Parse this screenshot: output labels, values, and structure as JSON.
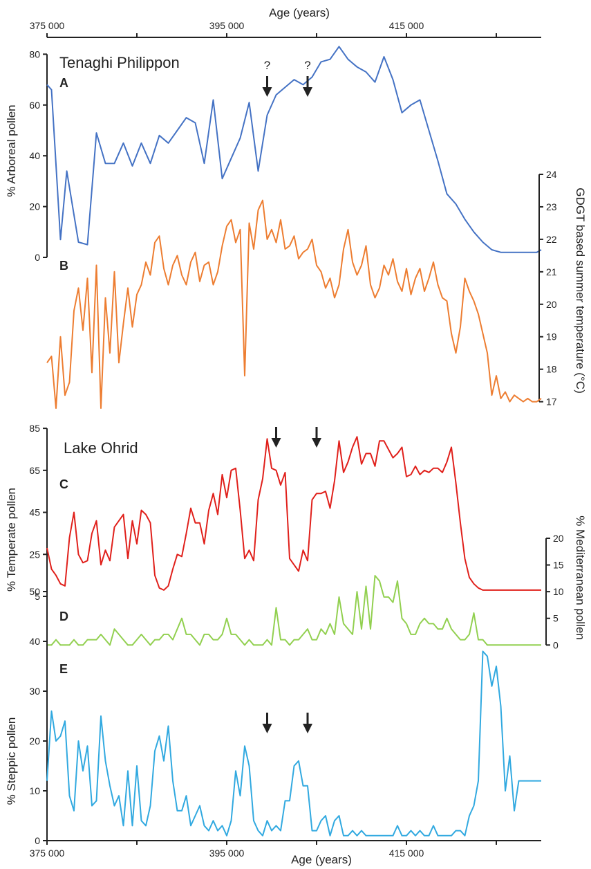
{
  "chart_data": [
    {
      "type": "line",
      "panel": "A",
      "site_title": "Tenaghi Philippon",
      "ylabel": "% Arboreal pollen",
      "ylim": [
        0,
        85
      ],
      "yticks": [
        0,
        20,
        40,
        60,
        80
      ],
      "color": "#4472c4",
      "xlabel_top": "Age (years)",
      "xlim": [
        375000,
        430000
      ],
      "xticks": [
        375000,
        395000,
        415000
      ],
      "xtick_labels": [
        "375 000",
        "395 000",
        "415 000"
      ],
      "arrows": [
        {
          "x": 399500,
          "label": "?"
        },
        {
          "x": 404000,
          "label": "?"
        }
      ],
      "x": [
        375000,
        375500,
        376500,
        377200,
        378500,
        379500,
        380500,
        381500,
        382500,
        383500,
        384500,
        385500,
        386500,
        387500,
        388500,
        389500,
        390500,
        391500,
        392500,
        393500,
        394500,
        395500,
        396500,
        397500,
        398500,
        399500,
        400500,
        401500,
        402500,
        403500,
        404500,
        405500,
        406500,
        407500,
        408500,
        409500,
        410500,
        411500,
        412500,
        413500,
        414500,
        415500,
        416500,
        417500,
        418500,
        419500,
        420500,
        421500,
        422500,
        423500,
        424500,
        425500,
        426500,
        427500,
        428500,
        429500,
        430000
      ],
      "y": [
        68,
        66,
        7,
        34,
        6,
        5,
        49,
        37,
        37,
        45,
        36,
        45,
        37,
        48,
        45,
        50,
        55,
        53,
        37,
        62,
        31,
        39,
        47,
        61,
        34,
        56,
        64,
        67,
        70,
        68,
        71,
        77,
        78,
        83,
        78,
        75,
        73,
        69,
        79,
        70,
        57,
        60,
        62,
        50,
        38,
        25,
        21,
        15,
        10,
        6,
        3,
        2,
        2,
        2,
        2,
        2,
        3
      ]
    },
    {
      "type": "line",
      "panel": "B",
      "ylabel_right": "GDGT based summer temperature (°C)",
      "ylim": [
        16.8,
        24
      ],
      "yticks": [
        17,
        18,
        19,
        20,
        21,
        22,
        23,
        24
      ],
      "color": "#ed7d31",
      "x": [
        375000,
        375500,
        376000,
        376500,
        377000,
        377500,
        378000,
        378500,
        379000,
        379500,
        380000,
        380500,
        381000,
        381500,
        382000,
        382500,
        383000,
        383500,
        384000,
        384500,
        385000,
        385500,
        386000,
        386500,
        387000,
        387500,
        388000,
        388500,
        389000,
        389500,
        390000,
        390500,
        391000,
        391500,
        392000,
        392500,
        393000,
        393500,
        394000,
        394500,
        395000,
        395500,
        396000,
        396500,
        397000,
        397500,
        398000,
        398500,
        399000,
        399500,
        400000,
        400500,
        401000,
        401500,
        402000,
        402500,
        403000,
        403500,
        404000,
        404500,
        405000,
        405500,
        406000,
        406500,
        407000,
        407500,
        408000,
        408500,
        409000,
        409500,
        410000,
        410500,
        411000,
        411500,
        412000,
        412500,
        413000,
        413500,
        414000,
        414500,
        415000,
        415500,
        416000,
        416500,
        417000,
        417500,
        418000,
        418500,
        419000,
        419500,
        420000,
        420500,
        421000,
        421500,
        422000,
        422500,
        423000,
        423500,
        424000,
        424500,
        425000,
        425500,
        426000,
        426500,
        427000,
        427500,
        428000,
        428500,
        429000,
        429500,
        430000
      ],
      "y": [
        18.2,
        18.4,
        16.8,
        19.0,
        17.2,
        17.6,
        19.8,
        20.5,
        19.2,
        20.8,
        17.9,
        21.2,
        16.8,
        20.2,
        18.5,
        21.0,
        18.2,
        19.4,
        20.5,
        19.3,
        20.3,
        20.6,
        21.3,
        20.9,
        21.9,
        22.1,
        21.1,
        20.6,
        21.2,
        21.5,
        20.9,
        20.6,
        21.3,
        21.6,
        20.7,
        21.2,
        21.3,
        20.6,
        21.0,
        21.8,
        22.4,
        22.6,
        21.9,
        22.3,
        17.8,
        22.5,
        21.7,
        22.9,
        23.2,
        22.0,
        22.3,
        21.9,
        22.6,
        21.7,
        21.8,
        22.1,
        21.4,
        21.6,
        21.7,
        22.0,
        21.2,
        21.0,
        20.5,
        20.8,
        20.2,
        20.6,
        21.7,
        22.3,
        21.3,
        20.9,
        21.2,
        21.8,
        20.6,
        20.2,
        20.5,
        21.2,
        20.9,
        21.4,
        20.7,
        20.4,
        21.1,
        20.3,
        20.8,
        21.1,
        20.4,
        20.8,
        21.3,
        20.6,
        20.2,
        20.1,
        19.1,
        18.5,
        19.3,
        20.8,
        20.4,
        20.1,
        19.7,
        19.1,
        18.5,
        17.2,
        17.8,
        17.1,
        17.3,
        17.0,
        17.2,
        17.1,
        17.0,
        17.1,
        17.0,
        17.0,
        17.1
      ]
    },
    {
      "type": "line",
      "panel": "C",
      "site_title": "Lake Ohrid",
      "ylabel": "% Temperate pollen",
      "ylim": [
        4,
        88
      ],
      "yticks": [
        5,
        25,
        45,
        65,
        85
      ],
      "color": "#e0201b",
      "arrows": [
        {
          "x": 400500
        },
        {
          "x": 405000
        }
      ],
      "x": [
        375000,
        375500,
        376000,
        376500,
        377000,
        377500,
        378000,
        378500,
        379000,
        379500,
        380000,
        380500,
        381000,
        381500,
        382000,
        382500,
        383000,
        383500,
        384000,
        384500,
        385000,
        385500,
        386000,
        386500,
        387000,
        387500,
        388000,
        388500,
        389000,
        389500,
        390000,
        390500,
        391000,
        391500,
        392000,
        392500,
        393000,
        393500,
        394000,
        394500,
        395000,
        395500,
        396000,
        396500,
        397000,
        397500,
        398000,
        398500,
        399000,
        399500,
        400000,
        400500,
        401000,
        401500,
        402000,
        402500,
        403000,
        403500,
        404000,
        404500,
        405000,
        405500,
        406000,
        406500,
        407000,
        407500,
        408000,
        408500,
        409000,
        409500,
        410000,
        410500,
        411000,
        411500,
        412000,
        412500,
        413000,
        413500,
        414000,
        414500,
        415000,
        415500,
        416000,
        416500,
        417000,
        417500,
        418000,
        418500,
        419000,
        419500,
        420000,
        420500,
        421000,
        421500,
        422000,
        422500,
        423000,
        423500,
        424000,
        424500,
        425000,
        425500,
        426000,
        426500,
        427000,
        427500,
        428000,
        428500,
        429000,
        429500,
        430000
      ],
      "y": [
        28,
        18,
        15,
        11,
        10,
        33,
        45,
        25,
        21,
        22,
        35,
        41,
        20,
        27,
        22,
        38,
        41,
        44,
        23,
        41,
        30,
        46,
        44,
        40,
        15,
        9,
        8,
        10,
        18,
        25,
        24,
        35,
        47,
        40,
        40,
        30,
        46,
        54,
        44,
        63,
        52,
        65,
        66,
        46,
        23,
        27,
        22,
        51,
        61,
        80,
        66,
        65,
        58,
        64,
        23,
        20,
        17,
        27,
        22,
        51,
        54,
        54,
        55,
        47,
        60,
        79,
        64,
        69,
        76,
        81,
        68,
        73,
        73,
        67,
        79,
        79,
        75,
        71,
        73,
        76,
        62,
        63,
        67,
        63,
        65,
        64,
        66,
        66,
        64,
        69,
        76,
        59,
        40,
        23,
        14,
        11,
        9,
        8,
        8,
        8,
        8,
        8,
        8,
        8,
        8,
        8,
        8,
        8,
        8,
        8,
        8
      ],
      "y_note": "trailing"
    },
    {
      "type": "line",
      "panel": "D",
      "ylabel_right": "% Mediterranean pollen",
      "ylim": [
        -1,
        20
      ],
      "yticks": [
        0,
        5,
        10,
        15,
        20
      ],
      "color": "#92d050",
      "x": [
        375000,
        375500,
        376000,
        376500,
        377000,
        377500,
        378000,
        378500,
        379000,
        379500,
        380000,
        380500,
        381000,
        381500,
        382000,
        382500,
        383000,
        383500,
        384000,
        384500,
        385000,
        385500,
        386000,
        386500,
        387000,
        387500,
        388000,
        388500,
        389000,
        389500,
        390000,
        390500,
        391000,
        391500,
        392000,
        392500,
        393000,
        393500,
        394000,
        394500,
        395000,
        395500,
        396000,
        396500,
        397000,
        397500,
        398000,
        398500,
        399000,
        399500,
        400000,
        400500,
        401000,
        401500,
        402000,
        402500,
        403000,
        403500,
        404000,
        404500,
        405000,
        405500,
        406000,
        406500,
        407000,
        407500,
        408000,
        408500,
        409000,
        409500,
        410000,
        410500,
        411000,
        411500,
        412000,
        412500,
        413000,
        413500,
        414000,
        414500,
        415000,
        415500,
        416000,
        416500,
        417000,
        417500,
        418000,
        418500,
        419000,
        419500,
        420000,
        420500,
        421000,
        421500,
        422000,
        422500,
        423000,
        423500,
        424000,
        424500,
        425000,
        425500,
        426000,
        426500,
        427000,
        427500,
        428000,
        428500,
        429000,
        429500,
        430000
      ],
      "y": [
        0,
        0,
        1,
        0,
        0,
        0,
        1,
        0,
        0,
        1,
        1,
        1,
        2,
        1,
        0,
        3,
        2,
        1,
        0,
        0,
        1,
        2,
        1,
        0,
        1,
        1,
        2,
        2,
        1,
        3,
        5,
        2,
        2,
        1,
        0,
        2,
        2,
        1,
        1,
        2,
        5,
        2,
        2,
        1,
        0,
        1,
        0,
        0,
        0,
        1,
        0,
        7,
        1,
        1,
        0,
        1,
        1,
        2,
        3,
        1,
        1,
        3,
        2,
        4,
        2,
        9,
        4,
        3,
        2,
        10,
        3,
        11,
        3,
        13,
        12,
        9,
        9,
        8,
        12,
        5,
        4,
        2,
        2,
        4,
        5,
        4,
        4,
        3,
        3,
        5,
        3,
        2,
        1,
        1,
        2,
        6,
        1,
        1,
        0,
        0,
        0,
        0,
        0,
        0,
        0,
        0,
        0,
        0,
        0,
        0,
        0
      ]
    },
    {
      "type": "line",
      "panel": "E",
      "ylabel": "% Steppic pollen",
      "xlabel_bottom": "Age (years)",
      "ylim": [
        0,
        50
      ],
      "yticks": [
        0,
        10,
        20,
        30,
        40,
        50
      ],
      "color": "#31a9e0",
      "arrows": [
        {
          "x": 399500
        },
        {
          "x": 404000
        }
      ],
      "x": [
        375000,
        375500,
        376000,
        376500,
        377000,
        377500,
        378000,
        378500,
        379000,
        379500,
        380000,
        380500,
        381000,
        381500,
        382000,
        382500,
        383000,
        383500,
        384000,
        384500,
        385000,
        385500,
        386000,
        386500,
        387000,
        387500,
        388000,
        388500,
        389000,
        389500,
        390000,
        390500,
        391000,
        391500,
        392000,
        392500,
        393000,
        393500,
        394000,
        394500,
        395000,
        395500,
        396000,
        396500,
        397000,
        397500,
        398000,
        398500,
        399000,
        399500,
        400000,
        400500,
        401000,
        401500,
        402000,
        402500,
        403000,
        403500,
        404000,
        404500,
        405000,
        405500,
        406000,
        406500,
        407000,
        407500,
        408000,
        408500,
        409000,
        409500,
        410000,
        410500,
        411000,
        411500,
        412000,
        412500,
        413000,
        413500,
        414000,
        414500,
        415000,
        415500,
        416000,
        416500,
        417000,
        417500,
        418000,
        418500,
        419000,
        419500,
        420000,
        420500,
        421000,
        421500,
        422000,
        422500,
        423000,
        423500,
        424000,
        424500,
        425000,
        425500,
        426000,
        426500,
        427000,
        427500,
        428000,
        428500,
        429000,
        429500,
        430000
      ],
      "y": [
        12,
        26,
        20,
        21,
        24,
        9,
        6,
        20,
        14,
        19,
        7,
        8,
        25,
        16,
        11,
        7,
        9,
        3,
        14,
        3,
        15,
        4,
        3,
        7,
        18,
        21,
        16,
        23,
        12,
        6,
        6,
        9,
        3,
        5,
        7,
        3,
        2,
        4,
        2,
        3,
        1,
        4,
        14,
        9,
        19,
        15,
        4,
        2,
        1,
        4,
        2,
        3,
        2,
        8,
        8,
        15,
        16,
        11,
        11,
        2,
        2,
        4,
        5,
        1,
        4,
        5,
        1,
        1,
        2,
        1,
        2,
        1,
        1,
        1,
        1,
        1,
        1,
        1,
        3,
        1,
        1,
        2,
        1,
        2,
        1,
        1,
        3,
        1,
        1,
        1,
        1,
        2,
        2,
        1,
        5,
        7,
        12,
        38,
        37,
        31,
        35,
        27,
        10,
        17,
        6,
        12,
        12,
        12,
        12,
        12,
        12
      ]
    }
  ],
  "labels": {
    "top_axis": "Age (years)",
    "bottom_axis": "Age (years)",
    "site_a": "Tenaghi Philippon",
    "site_b": "Lake Ohrid",
    "letters": [
      "A",
      "B",
      "C",
      "D",
      "E"
    ],
    "qmark": "?"
  },
  "colors": {
    "axis": "#222222",
    "arrow": "#222222"
  }
}
